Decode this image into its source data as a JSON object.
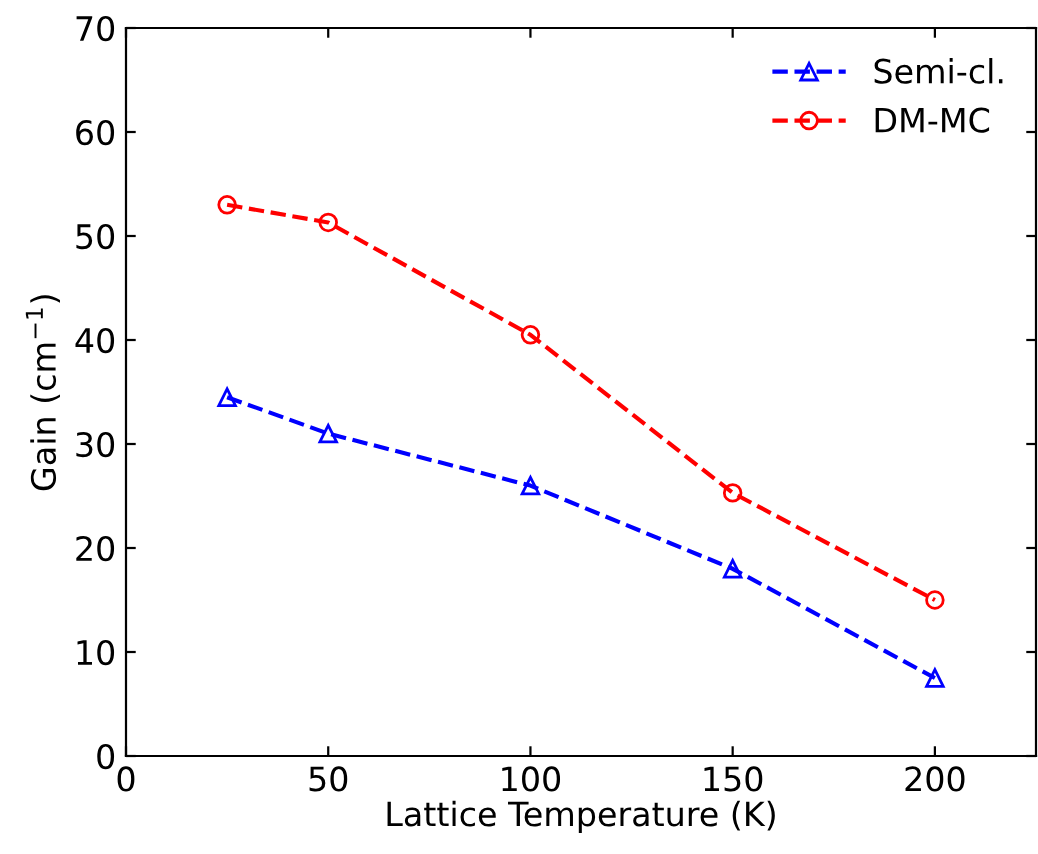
{
  "chart_data": {
    "type": "line",
    "xlabel": "Lattice Temperature (K)",
    "ylabel": "Gain (cm$^{−1}$)",
    "x": [
      25,
      50,
      100,
      150,
      200
    ],
    "series": [
      {
        "name": "Semi-cl.",
        "color": "#0000ff",
        "marker": "triangle",
        "values": [
          34.5,
          31,
          26,
          18,
          7.5
        ]
      },
      {
        "name": "DM-MC",
        "color": "#ff0000",
        "marker": "circle",
        "values": [
          53,
          51.3,
          40.5,
          25.3,
          15
        ]
      }
    ],
    "xlim": [
      0,
      225
    ],
    "xticks": [
      0,
      50,
      100,
      150,
      200
    ],
    "ylim": [
      0,
      70
    ],
    "yticks": [
      0,
      10,
      20,
      30,
      40,
      50,
      60,
      70
    ],
    "line_style": "dashed",
    "grid": false,
    "legend": "top right"
  }
}
